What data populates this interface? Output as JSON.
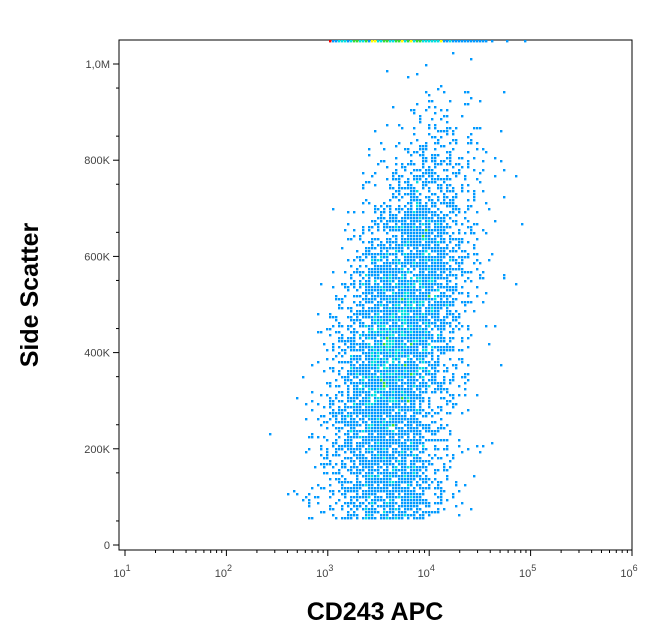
{
  "chart_data": {
    "type": "scatter",
    "title": "",
    "xlabel": "CD243 APC",
    "ylabel": "Side Scatter",
    "x_scale": "log",
    "xlim": [
      10,
      1000000
    ],
    "ylim": [
      0,
      1050000
    ],
    "x_ticks": [
      {
        "value": 10,
        "base": "10",
        "exp": "1"
      },
      {
        "value": 100,
        "base": "10",
        "exp": "2"
      },
      {
        "value": 1000,
        "base": "10",
        "exp": "3"
      },
      {
        "value": 10000,
        "base": "10",
        "exp": "4"
      },
      {
        "value": 100000,
        "base": "10",
        "exp": "5"
      },
      {
        "value": 1000000,
        "base": "10",
        "exp": "6"
      }
    ],
    "y_ticks": [
      {
        "value": 0,
        "label": "0"
      },
      {
        "value": 200000,
        "label": "200K"
      },
      {
        "value": 400000,
        "label": "400K"
      },
      {
        "value": 600000,
        "label": "600K"
      },
      {
        "value": 800000,
        "label": "800K"
      },
      {
        "value": 1000000,
        "label": "1,0M"
      }
    ],
    "grid": false,
    "legend": "none",
    "density_colors": [
      "#0000ff",
      "#0099ff",
      "#00e0e0",
      "#33dd33",
      "#ffff00",
      "#ff8800",
      "#ff0000"
    ],
    "populations": [
      {
        "x_center": 3500,
        "y_center": 300000,
        "share": 0.1
      },
      {
        "x_center": 4500,
        "y_center": 400000,
        "share": 0.4
      },
      {
        "x_center": 7000,
        "y_center": 620000,
        "share": 0.3
      },
      {
        "x_center": 4000,
        "y_center": 110000,
        "share": 0.2
      }
    ]
  }
}
